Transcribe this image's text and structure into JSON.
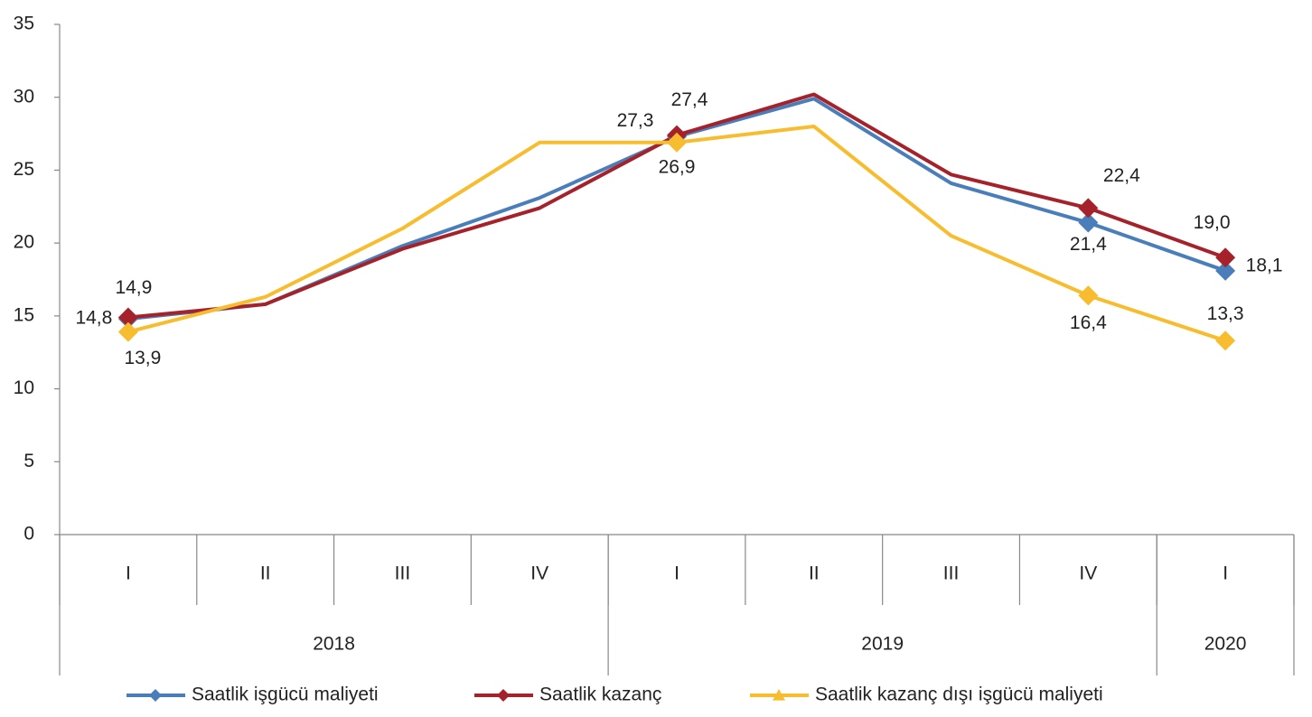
{
  "chart_data": {
    "type": "line",
    "categories": [
      "I",
      "II",
      "III",
      "IV",
      "I",
      "II",
      "III",
      "IV",
      "I"
    ],
    "groups": [
      {
        "name": "2018",
        "count": 4
      },
      {
        "name": "2019",
        "count": 4
      },
      {
        "name": "2020",
        "count": 1
      }
    ],
    "series": [
      {
        "name": "Saatlik işgücü maliyeti",
        "color": "#4a7ebb",
        "marker": "diamond",
        "values": [
          14.8,
          15.8,
          19.8,
          23.1,
          27.3,
          29.9,
          24.1,
          21.4,
          18.1
        ],
        "value_labels": [
          "14,8",
          null,
          null,
          null,
          "27,3",
          null,
          null,
          "21,4",
          "18,1"
        ]
      },
      {
        "name": "Saatlik kazanç",
        "color": "#a5222a",
        "marker": "diamond",
        "values": [
          14.9,
          15.8,
          19.6,
          22.4,
          27.4,
          30.2,
          24.7,
          22.4,
          19.0
        ],
        "value_labels": [
          "14,9",
          null,
          null,
          null,
          "27,4",
          null,
          null,
          "22,4",
          "19,0"
        ]
      },
      {
        "name": "Saatlik kazanç dışı işgücü maliyeti",
        "color": "#f7bd2e",
        "marker": "triangle",
        "values": [
          13.9,
          16.3,
          21.0,
          26.9,
          26.9,
          28.0,
          20.5,
          16.4,
          13.3
        ],
        "value_labels": [
          "13,9",
          null,
          null,
          null,
          "26,9",
          null,
          null,
          "16,4",
          "13,3"
        ]
      }
    ],
    "ylim": [
      0,
      35
    ],
    "yticks": [
      0,
      5,
      10,
      15,
      20,
      25,
      30,
      35
    ]
  }
}
